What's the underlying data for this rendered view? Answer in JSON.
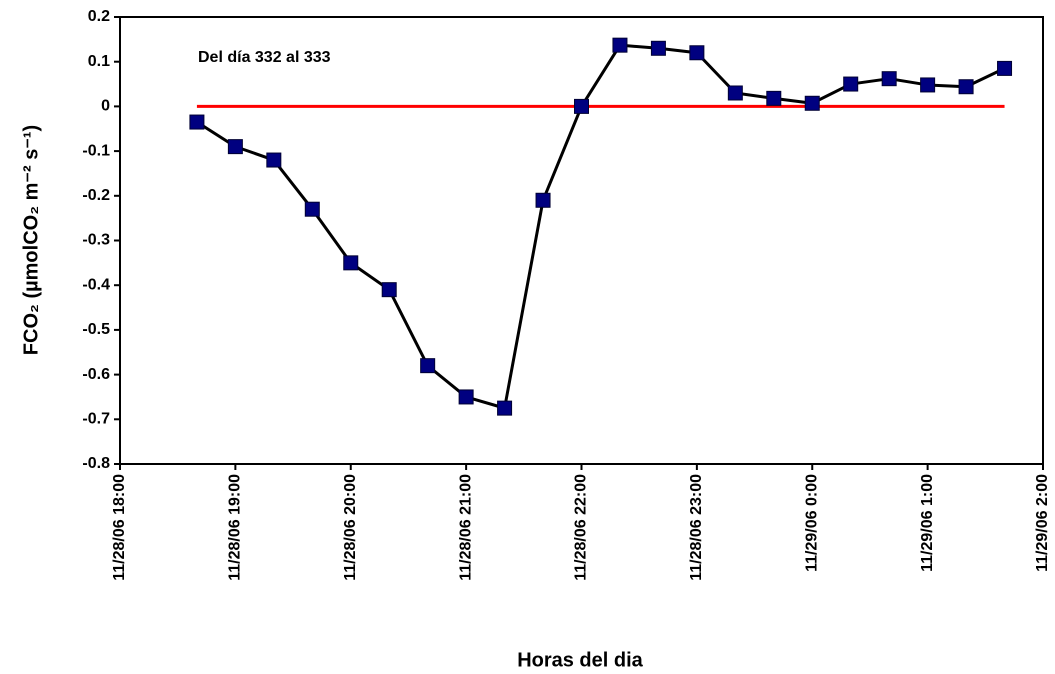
{
  "chart_data": {
    "type": "line",
    "annotation": "Del día 332 al 333",
    "x_label": "Horas del dia",
    "y_label": "FCO₂ (µmolCO₂ m⁻² s⁻¹)",
    "x": [
      "11/28/06 18:40",
      "11/28/06 19:00",
      "11/28/06 19:20",
      "11/28/06 19:40",
      "11/28/06 20:00",
      "11/28/06 20:20",
      "11/28/06 20:40",
      "11/28/06 21:00",
      "11/28/06 21:20",
      "11/28/06 21:40",
      "11/28/06 22:00",
      "11/28/06 22:20",
      "11/28/06 22:40",
      "11/28/06 23:00",
      "11/28/06 23:20",
      "11/28/06 23:40",
      "11/29/06 0:00",
      "11/29/06 0:20",
      "11/29/06 0:40",
      "11/29/06 1:00",
      "11/29/06 1:20",
      "11/29/06 1:40"
    ],
    "series": [
      {
        "color": "#000000",
        "marker_color": "#000080",
        "values": [
          -0.035,
          -0.09,
          -0.12,
          -0.23,
          -0.35,
          -0.41,
          -0.58,
          -0.65,
          -0.675,
          -0.21,
          0.0,
          0.137,
          0.13,
          0.12,
          0.03,
          0.018,
          0.007,
          0.05,
          0.062,
          0.048,
          0.044,
          0.085
        ]
      }
    ],
    "reference_line": {
      "value": 0,
      "color": "#ff0000",
      "x": [
        "11/28/06 18:40",
        "11/29/06 1:40"
      ]
    },
    "xlim": [
      "11/28/06 18:00",
      "11/29/06 2:00"
    ],
    "xticks": [
      "11/28/06 18:00",
      "11/28/06 19:00",
      "11/28/06 20:00",
      "11/28/06 21:00",
      "11/28/06 22:00",
      "11/28/06 23:00",
      "11/29/06 0:00",
      "11/29/06 1:00",
      "11/29/06 2:00"
    ],
    "ylim": [
      -0.8,
      0.2
    ],
    "yticks": [
      0.2,
      0.1,
      0,
      -0.1,
      -0.2,
      -0.3,
      -0.4,
      -0.5,
      -0.6,
      -0.7,
      -0.8
    ]
  }
}
